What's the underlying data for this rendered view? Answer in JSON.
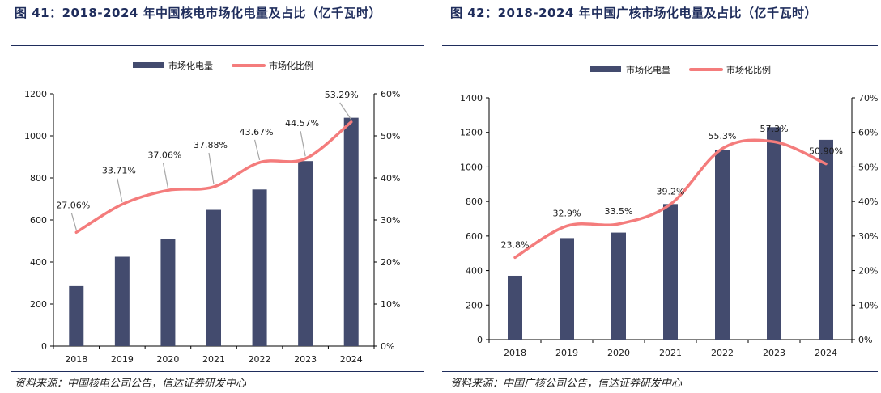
{
  "figures": [
    {
      "title": "图 41：2018-2024 年中国核电市场化电量及占比（亿千瓦时）",
      "source": "资料来源：中国核电公司公告，信达证券研发中心"
    },
    {
      "title": "图 42：2018-2024 年中国广核市场化电量及占比（亿千瓦时）",
      "source": "资料来源：中国广核公司公告，信达证券研发中心"
    }
  ],
  "colors": {
    "bar": "#434b6e",
    "line": "#f47c7c",
    "title": "#1f2d5c"
  },
  "chart_data": [
    {
      "type": "bar",
      "categories": [
        "2018",
        "2019",
        "2020",
        "2021",
        "2022",
        "2023",
        "2024"
      ],
      "series": [
        {
          "name": "市场化电量",
          "type": "bar",
          "axis": "left",
          "values": [
            285,
            425,
            510,
            648,
            745,
            880,
            1086
          ]
        },
        {
          "name": "市场化比例",
          "type": "line",
          "axis": "right",
          "values": [
            27.06,
            33.71,
            37.06,
            37.88,
            43.67,
            44.57,
            53.29
          ],
          "labels": [
            "27.06%",
            "33.71%",
            "37.06%",
            "37.88%",
            "43.67%",
            "44.57%",
            "53.29%"
          ]
        }
      ],
      "left_axis": {
        "min": 0,
        "max": 1200,
        "step": 200,
        "ticks": [
          "0",
          "200",
          "400",
          "600",
          "800",
          "1000",
          "1200"
        ]
      },
      "right_axis": {
        "min": 0,
        "max": 60,
        "step": 10,
        "ticks": [
          "0%",
          "10%",
          "20%",
          "30%",
          "40%",
          "50%",
          "60%"
        ]
      },
      "legend_position": "top-center",
      "label_style": "callout-leader"
    },
    {
      "type": "bar",
      "categories": [
        "2018",
        "2019",
        "2020",
        "2021",
        "2022",
        "2023",
        "2024"
      ],
      "series": [
        {
          "name": "市场化电量",
          "type": "bar",
          "axis": "left",
          "values": [
            370,
            588,
            620,
            785,
            1096,
            1230,
            1157
          ]
        },
        {
          "name": "市场化比例",
          "type": "line",
          "axis": "right",
          "values": [
            23.8,
            32.9,
            33.5,
            39.2,
            55.3,
            57.3,
            50.9
          ],
          "labels": [
            "23.8%",
            "32.9%",
            "33.5%",
            "39.2%",
            "55.3%",
            "57.3%",
            "50.90%"
          ]
        }
      ],
      "left_axis": {
        "min": 0,
        "max": 1400,
        "step": 200,
        "ticks": [
          "0",
          "200",
          "400",
          "600",
          "800",
          "1000",
          "1200",
          "1400"
        ]
      },
      "right_axis": {
        "min": 0,
        "max": 70,
        "step": 10,
        "ticks": [
          "0%",
          "10%",
          "20%",
          "30%",
          "40%",
          "50%",
          "60%",
          "70%"
        ]
      },
      "legend_position": "top-center",
      "label_style": "above-point"
    }
  ]
}
